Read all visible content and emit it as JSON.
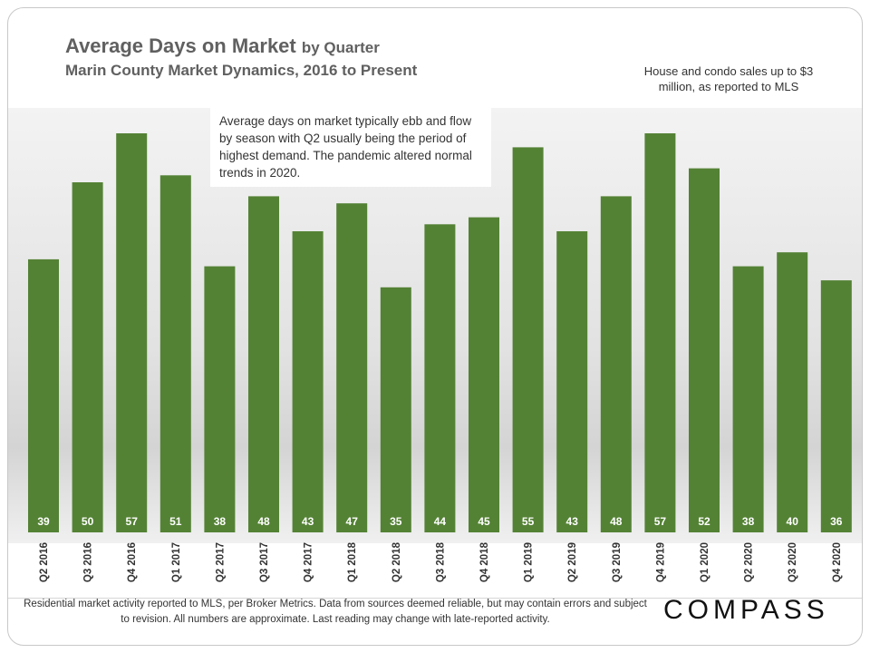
{
  "header": {
    "title": "Average Days on Market",
    "title_suffix": "by Quarter",
    "subtitle": "Marin County Market Dynamics,  2016 to Present",
    "note": "House and condo sales up to $3 million, as reported to MLS"
  },
  "callout": "Average days on market typically ebb and flow by season with Q2 usually being the period of highest demand. The pandemic altered normal trends in 2020.",
  "footer": {
    "text": "Residential market activity reported to MLS, per Broker Metrics. Data from sources deemed reliable, but may contain errors and subject to revision. All numbers are approximate. Last reading may change with late-reported activity.",
    "logo": "COMPASS"
  },
  "colors": {
    "bar": "#548235",
    "label": "#ffffff",
    "title": "#606060"
  },
  "chart_data": {
    "type": "bar",
    "categories": [
      "Q2 2016",
      "Q3 2016",
      "Q4 2016",
      "Q1 2017",
      "Q2 2017",
      "Q3 2017",
      "Q4 2017",
      "Q1 2018",
      "Q2 2018",
      "Q3 2018",
      "Q4 2018",
      "Q1 2019",
      "Q2 2019",
      "Q3 2019",
      "Q4 2019",
      "Q1 2020",
      "Q2 2020",
      "Q3 2020",
      "Q4 2020"
    ],
    "values": [
      39,
      50,
      57,
      51,
      38,
      48,
      43,
      47,
      35,
      44,
      45,
      55,
      43,
      48,
      57,
      52,
      38,
      40,
      36
    ],
    "title": "Average Days on Market by Quarter",
    "xlabel": "",
    "ylabel": "",
    "grid": false,
    "data_labels": true
  }
}
